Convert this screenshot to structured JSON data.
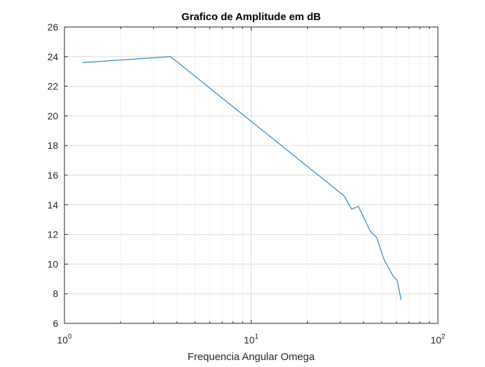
{
  "chart_data": {
    "type": "line",
    "title": "Grafico de Amplitude em dB",
    "xlabel": "Frequencia Angular Omega",
    "ylabel": "",
    "x_scale": "log",
    "xlim": [
      1,
      100
    ],
    "ylim": [
      6,
      26
    ],
    "grid": true,
    "x_ticks": [
      {
        "value": 1,
        "base": "10",
        "exp": "0"
      },
      {
        "value": 10,
        "base": "10",
        "exp": "1"
      },
      {
        "value": 100,
        "base": "10",
        "exp": "2"
      }
    ],
    "y_ticks": [
      "6",
      "8",
      "10",
      "12",
      "14",
      "16",
      "18",
      "20",
      "22",
      "24",
      "26"
    ],
    "series": [
      {
        "color": "#0072bd",
        "x": [
          1.25,
          3.7,
          31.5,
          34.5,
          37.5,
          43.5,
          47.0,
          51.5,
          57.5,
          60.5,
          63.5
        ],
        "y": [
          23.6,
          24.0,
          14.6,
          13.7,
          13.9,
          12.2,
          11.8,
          10.3,
          9.2,
          8.9,
          7.6
        ]
      }
    ]
  }
}
